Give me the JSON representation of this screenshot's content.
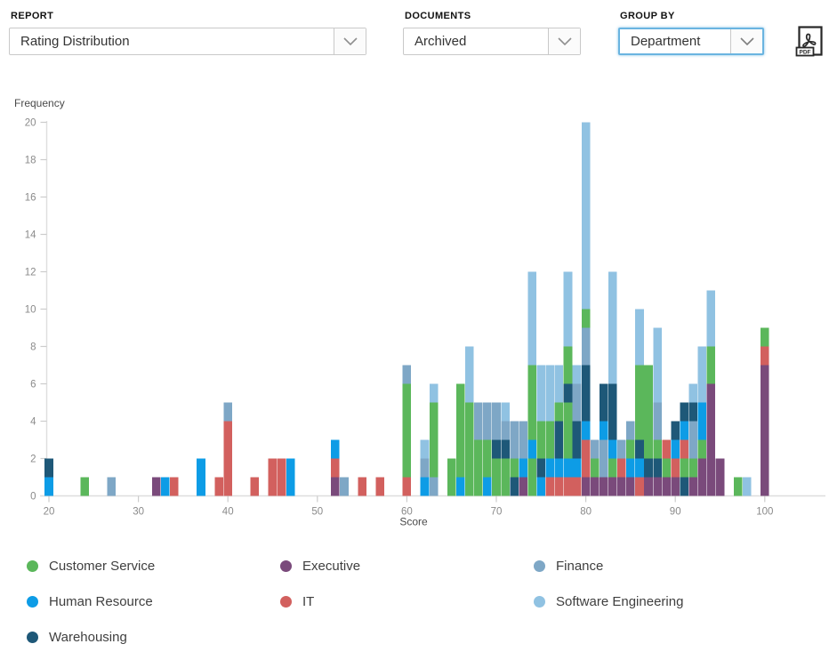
{
  "controls": {
    "report": {
      "label": "REPORT",
      "value": "Rating Distribution"
    },
    "documents": {
      "label": "DOCUMENTS",
      "value": "Archived"
    },
    "group_by": {
      "label": "GROUP BY",
      "value": "Department"
    },
    "export": {
      "label": "PDF"
    }
  },
  "chart_data": {
    "type": "bar",
    "stacked": true,
    "title": "",
    "xlabel": "Score",
    "ylabel": "Frequency",
    "xlim": [
      18,
      106
    ],
    "ylim": [
      0,
      20
    ],
    "x_ticks": [
      20,
      30,
      40,
      50,
      60,
      70,
      80,
      90,
      100
    ],
    "y_ticks": [
      0,
      2,
      4,
      6,
      8,
      10,
      12,
      14,
      16,
      18,
      20
    ],
    "grid": false,
    "legend_position": "bottom",
    "axis_color": "#dedede",
    "tick_color": "#cccccc",
    "tick_label_color": "#8a8a8a",
    "axis_title_color": "#4a4a4a",
    "departments": [
      {
        "key": "CS",
        "name": "Customer Service",
        "color": "#5bb75b"
      },
      {
        "key": "EX",
        "name": "Executive",
        "color": "#7a4a7b"
      },
      {
        "key": "FI",
        "name": "Finance",
        "color": "#7ea7c6"
      },
      {
        "key": "HR",
        "name": "Human Resource",
        "color": "#0d9ce6"
      },
      {
        "key": "IT",
        "name": "IT",
        "color": "#d2605e"
      },
      {
        "key": "SE",
        "name": "Software Engineering",
        "color": "#90c2e2"
      },
      {
        "key": "WH",
        "name": "Warehousing",
        "color": "#1e5878"
      }
    ],
    "bars": [
      {
        "score": 20,
        "segments": [
          [
            "HR",
            1
          ],
          [
            "WH",
            1
          ]
        ]
      },
      {
        "score": 24,
        "segments": [
          [
            "CS",
            1
          ]
        ]
      },
      {
        "score": 27,
        "segments": [
          [
            "FI",
            1
          ]
        ]
      },
      {
        "score": 32,
        "segments": [
          [
            "EX",
            1
          ]
        ]
      },
      {
        "score": 33,
        "segments": [
          [
            "HR",
            1
          ]
        ]
      },
      {
        "score": 34,
        "segments": [
          [
            "IT",
            1
          ]
        ]
      },
      {
        "score": 37,
        "segments": [
          [
            "HR",
            2
          ]
        ]
      },
      {
        "score": 39,
        "segments": [
          [
            "IT",
            1
          ]
        ]
      },
      {
        "score": 40,
        "segments": [
          [
            "IT",
            4
          ],
          [
            "FI",
            1
          ]
        ]
      },
      {
        "score": 43,
        "segments": [
          [
            "IT",
            1
          ]
        ]
      },
      {
        "score": 45,
        "segments": [
          [
            "IT",
            2
          ]
        ]
      },
      {
        "score": 46,
        "segments": [
          [
            "IT",
            2
          ]
        ]
      },
      {
        "score": 47,
        "segments": [
          [
            "HR",
            2
          ]
        ]
      },
      {
        "score": 52,
        "segments": [
          [
            "EX",
            1
          ],
          [
            "IT",
            1
          ],
          [
            "HR",
            1
          ]
        ]
      },
      {
        "score": 53,
        "segments": [
          [
            "FI",
            1
          ]
        ]
      },
      {
        "score": 55,
        "segments": [
          [
            "IT",
            1
          ]
        ]
      },
      {
        "score": 57,
        "segments": [
          [
            "IT",
            1
          ]
        ]
      },
      {
        "score": 60,
        "segments": [
          [
            "IT",
            1
          ],
          [
            "CS",
            5
          ],
          [
            "FI",
            1
          ]
        ]
      },
      {
        "score": 62,
        "segments": [
          [
            "HR",
            1
          ],
          [
            "FI",
            1
          ],
          [
            "SE",
            1
          ]
        ]
      },
      {
        "score": 63,
        "segments": [
          [
            "FI",
            1
          ],
          [
            "CS",
            4
          ],
          [
            "SE",
            1
          ]
        ]
      },
      {
        "score": 65,
        "segments": [
          [
            "CS",
            2
          ]
        ]
      },
      {
        "score": 66,
        "segments": [
          [
            "HR",
            1
          ],
          [
            "CS",
            5
          ]
        ]
      },
      {
        "score": 67,
        "segments": [
          [
            "CS",
            5
          ],
          [
            "SE",
            3
          ]
        ]
      },
      {
        "score": 68,
        "segments": [
          [
            "CS",
            3
          ],
          [
            "FI",
            2
          ]
        ]
      },
      {
        "score": 69,
        "segments": [
          [
            "HR",
            1
          ],
          [
            "CS",
            2
          ],
          [
            "FI",
            2
          ]
        ]
      },
      {
        "score": 70,
        "segments": [
          [
            "CS",
            2
          ],
          [
            "WH",
            1
          ],
          [
            "FI",
            2
          ]
        ]
      },
      {
        "score": 71,
        "segments": [
          [
            "CS",
            2
          ],
          [
            "WH",
            1
          ],
          [
            "FI",
            1
          ],
          [
            "SE",
            1
          ]
        ]
      },
      {
        "score": 72,
        "segments": [
          [
            "WH",
            1
          ],
          [
            "CS",
            1
          ],
          [
            "FI",
            2
          ]
        ]
      },
      {
        "score": 73,
        "segments": [
          [
            "EX",
            1
          ],
          [
            "HR",
            1
          ],
          [
            "FI",
            2
          ]
        ]
      },
      {
        "score": 74,
        "segments": [
          [
            "CS",
            2
          ],
          [
            "HR",
            1
          ],
          [
            "CS",
            4
          ],
          [
            "SE",
            5
          ]
        ]
      },
      {
        "score": 75,
        "segments": [
          [
            "HR",
            1
          ],
          [
            "WH",
            1
          ],
          [
            "CS",
            2
          ],
          [
            "SE",
            3
          ]
        ]
      },
      {
        "score": 76,
        "segments": [
          [
            "IT",
            1
          ],
          [
            "HR",
            1
          ],
          [
            "CS",
            2
          ],
          [
            "SE",
            3
          ]
        ]
      },
      {
        "score": 77,
        "segments": [
          [
            "IT",
            1
          ],
          [
            "HR",
            1
          ],
          [
            "WH",
            2
          ],
          [
            "CS",
            1
          ],
          [
            "SE",
            2
          ]
        ]
      },
      {
        "score": 78,
        "segments": [
          [
            "IT",
            1
          ],
          [
            "HR",
            1
          ],
          [
            "CS",
            3
          ],
          [
            "WH",
            1
          ],
          [
            "CS",
            2
          ],
          [
            "SE",
            4
          ]
        ]
      },
      {
        "score": 79,
        "segments": [
          [
            "IT",
            1
          ],
          [
            "HR",
            1
          ],
          [
            "WH",
            2
          ],
          [
            "FI",
            2
          ],
          [
            "SE",
            1
          ]
        ]
      },
      {
        "score": 80,
        "segments": [
          [
            "EX",
            1
          ],
          [
            "IT",
            2
          ],
          [
            "HR",
            1
          ],
          [
            "WH",
            3
          ],
          [
            "FI",
            2
          ],
          [
            "CS",
            1
          ],
          [
            "SE",
            10
          ]
        ]
      },
      {
        "score": 81,
        "segments": [
          [
            "EX",
            1
          ],
          [
            "CS",
            1
          ],
          [
            "FI",
            1
          ]
        ]
      },
      {
        "score": 82,
        "segments": [
          [
            "EX",
            1
          ],
          [
            "FI",
            2
          ],
          [
            "HR",
            1
          ],
          [
            "WH",
            2
          ]
        ]
      },
      {
        "score": 83,
        "segments": [
          [
            "EX",
            1
          ],
          [
            "CS",
            1
          ],
          [
            "HR",
            1
          ],
          [
            "WH",
            3
          ],
          [
            "SE",
            6
          ]
        ]
      },
      {
        "score": 84,
        "segments": [
          [
            "EX",
            1
          ],
          [
            "IT",
            1
          ],
          [
            "FI",
            1
          ]
        ]
      },
      {
        "score": 85,
        "segments": [
          [
            "EX",
            1
          ],
          [
            "HR",
            1
          ],
          [
            "CS",
            1
          ],
          [
            "FI",
            1
          ]
        ]
      },
      {
        "score": 86,
        "segments": [
          [
            "IT",
            1
          ],
          [
            "HR",
            1
          ],
          [
            "WH",
            1
          ],
          [
            "CS",
            4
          ],
          [
            "SE",
            3
          ]
        ]
      },
      {
        "score": 87,
        "segments": [
          [
            "EX",
            1
          ],
          [
            "WH",
            1
          ],
          [
            "CS",
            5
          ]
        ]
      },
      {
        "score": 88,
        "segments": [
          [
            "EX",
            1
          ],
          [
            "WH",
            1
          ],
          [
            "CS",
            1
          ],
          [
            "FI",
            2
          ],
          [
            "SE",
            4
          ]
        ]
      },
      {
        "score": 89,
        "segments": [
          [
            "EX",
            1
          ],
          [
            "CS",
            1
          ],
          [
            "IT",
            1
          ]
        ]
      },
      {
        "score": 90,
        "segments": [
          [
            "EX",
            1
          ],
          [
            "IT",
            1
          ],
          [
            "HR",
            1
          ],
          [
            "WH",
            1
          ]
        ]
      },
      {
        "score": 91,
        "segments": [
          [
            "WH",
            1
          ],
          [
            "CS",
            1
          ],
          [
            "IT",
            1
          ],
          [
            "HR",
            1
          ],
          [
            "WH",
            1
          ]
        ]
      },
      {
        "score": 92,
        "segments": [
          [
            "EX",
            1
          ],
          [
            "CS",
            1
          ],
          [
            "FI",
            2
          ],
          [
            "WH",
            1
          ],
          [
            "SE",
            1
          ]
        ]
      },
      {
        "score": 93,
        "segments": [
          [
            "EX",
            2
          ],
          [
            "CS",
            1
          ],
          [
            "HR",
            2
          ],
          [
            "SE",
            3
          ]
        ]
      },
      {
        "score": 94,
        "segments": [
          [
            "EX",
            6
          ],
          [
            "CS",
            2
          ],
          [
            "SE",
            3
          ]
        ]
      },
      {
        "score": 95,
        "segments": [
          [
            "EX",
            2
          ]
        ]
      },
      {
        "score": 97,
        "segments": [
          [
            "CS",
            1
          ]
        ]
      },
      {
        "score": 98,
        "segments": [
          [
            "SE",
            1
          ]
        ]
      },
      {
        "score": 100,
        "segments": [
          [
            "EX",
            7
          ],
          [
            "IT",
            1
          ],
          [
            "CS",
            1
          ]
        ]
      }
    ]
  }
}
